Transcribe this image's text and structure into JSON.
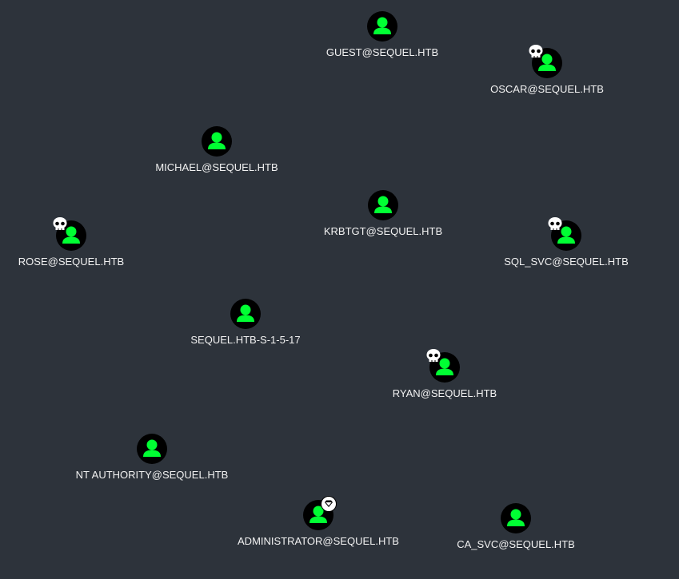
{
  "graph": {
    "background": "#2d333b",
    "node_color": "#00ff33",
    "nodes": [
      {
        "label": "GUEST@SEQUEL.HTB",
        "icon": "user-icon",
        "badge": null
      },
      {
        "label": "OSCAR@SEQUEL.HTB",
        "icon": "user-icon",
        "badge": "skull-icon"
      },
      {
        "label": "MICHAEL@SEQUEL.HTB",
        "icon": "user-icon",
        "badge": null
      },
      {
        "label": "KRBTGT@SEQUEL.HTB",
        "icon": "user-icon",
        "badge": null
      },
      {
        "label": "ROSE@SEQUEL.HTB",
        "icon": "user-icon",
        "badge": "skull-icon"
      },
      {
        "label": "SQL_SVC@SEQUEL.HTB",
        "icon": "user-icon",
        "badge": "skull-icon"
      },
      {
        "label": "SEQUEL.HTB-S-1-5-17",
        "icon": "user-icon",
        "badge": null
      },
      {
        "label": "RYAN@SEQUEL.HTB",
        "icon": "user-icon",
        "badge": "skull-icon"
      },
      {
        "label": "NT AUTHORITY@SEQUEL.HTB",
        "icon": "user-icon",
        "badge": null
      },
      {
        "label": "ADMINISTRATOR@SEQUEL.HTB",
        "icon": "user-icon",
        "badge": "diamond-icon"
      },
      {
        "label": "CA_SVC@SEQUEL.HTB",
        "icon": "user-icon",
        "badge": null
      }
    ]
  }
}
